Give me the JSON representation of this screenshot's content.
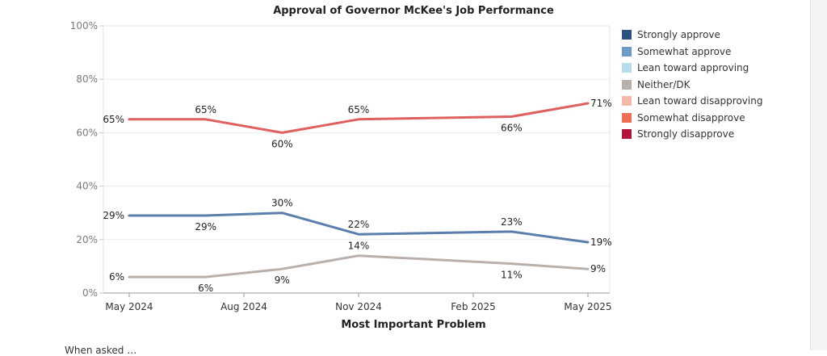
{
  "chart_data": {
    "type": "line",
    "title": "Approval of Governor McKee's Job Performance",
    "xlabel": "Most Important Problem",
    "ylabel": "",
    "ylim": [
      0,
      100
    ],
    "y_ticks": [
      "0%",
      "20%",
      "40%",
      "60%",
      "80%",
      "100%"
    ],
    "y_tick_values": [
      0,
      20,
      40,
      60,
      80,
      100
    ],
    "x_ticks": [
      "May 2024",
      "Aug 2024",
      "Nov 2024",
      "Feb 2025",
      "May 2025"
    ],
    "x_tick_values": [
      "2024-05",
      "2024-08",
      "2024-11",
      "2025-02",
      "2025-05"
    ],
    "x": [
      "2024-05",
      "2024-07",
      "2024-09",
      "2024-11",
      "2025-03",
      "2025-05"
    ],
    "grid": true,
    "legend_position": "right",
    "series": [
      {
        "key": "approve",
        "color": "#5b7fad",
        "values": [
          29,
          29,
          30,
          22,
          23,
          19
        ],
        "labels": [
          "29%",
          "29%",
          "30%",
          "22%",
          "23%",
          "19%"
        ]
      },
      {
        "key": "disapprove",
        "color": "#e06060",
        "values": [
          65,
          65,
          60,
          65,
          66,
          71
        ],
        "labels": [
          "65%",
          "65%",
          "60%",
          "65%",
          "66%",
          "71%"
        ]
      },
      {
        "key": "neither",
        "color": "#bab0ab",
        "values": [
          6,
          6,
          9,
          14,
          11,
          9
        ],
        "labels": [
          "6%",
          "6%",
          "9%",
          "14%",
          "11%",
          "9%"
        ]
      }
    ],
    "legend": [
      {
        "label": "Strongly approve",
        "color": "#2c5281"
      },
      {
        "label": "Somewhat approve",
        "color": "#6b9cc8"
      },
      {
        "label": "Lean toward approving",
        "color": "#b8dcec"
      },
      {
        "label": "Neither/DK",
        "color": "#bab0ab"
      },
      {
        "label": "Lean toward disapproving",
        "color": "#f6b8a8"
      },
      {
        "label": "Somewhat disapprove",
        "color": "#ee6e58"
      },
      {
        "label": "Strongly disapprove",
        "color": "#b0143c"
      }
    ]
  },
  "footer_text": "When asked …"
}
